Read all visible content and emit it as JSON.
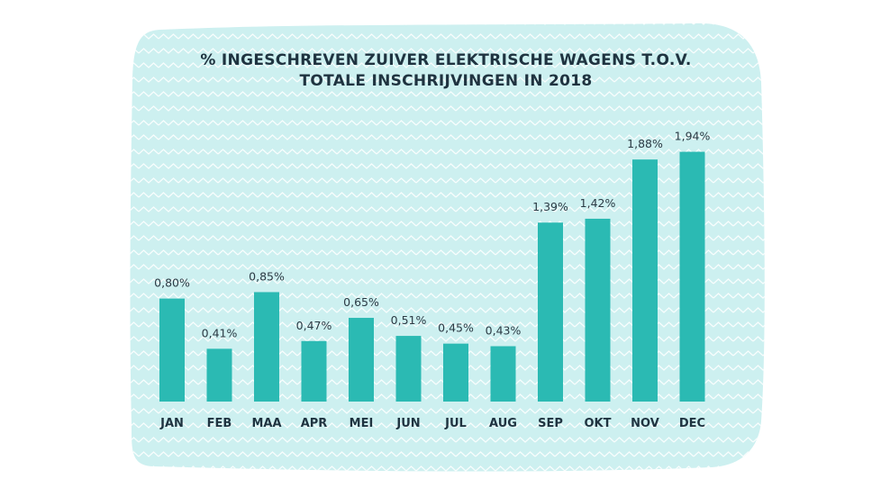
{
  "chart_data": {
    "type": "bar",
    "title_lines": [
      "% INGESCHREVEN ZUIVER ELEKTRISCHE WAGENS T.O.V.",
      "TOTALE INSCHRIJVINGEN IN 2018"
    ],
    "categories": [
      "JAN",
      "FEB",
      "MAA",
      "APR",
      "MEI",
      "JUN",
      "JUL",
      "AUG",
      "SEP",
      "OKT",
      "NOV",
      "DEC"
    ],
    "values": [
      0.8,
      0.41,
      0.85,
      0.47,
      0.65,
      0.51,
      0.45,
      0.43,
      1.39,
      1.42,
      1.88,
      1.94
    ],
    "value_labels": [
      "0,80%",
      "0,41%",
      "0,85%",
      "0,47%",
      "0,65%",
      "0,51%",
      "0,45%",
      "0,43%",
      "1,39%",
      "1,42%",
      "1,88%",
      "1,94%"
    ],
    "ylim": [
      0,
      2.0
    ],
    "grid": false,
    "legend": "none",
    "colors": {
      "bar": "#2bbab3",
      "panel": "#cdf0f0",
      "zigzag": "#ffffff",
      "text": "#1f3340"
    }
  }
}
